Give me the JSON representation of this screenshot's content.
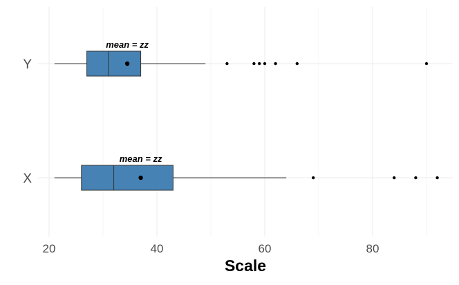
{
  "chart_data": {
    "type": "boxplot",
    "orientation": "horizontal",
    "xlabel": "Scale",
    "ylabel": "",
    "xlim": [
      18,
      95
    ],
    "x_ticks": [
      20,
      40,
      60,
      80
    ],
    "grid": true,
    "categories": [
      "Y",
      "X"
    ],
    "colors": {
      "box_fill": "#4682b4",
      "box_stroke": "#333333",
      "gridline": "#ebebeb",
      "point": "#000000"
    },
    "boxes": [
      {
        "category": "Y",
        "whisker_low": 21,
        "q1": 27,
        "median": 31,
        "q3": 37,
        "whisker_high": 49,
        "mean": 34.5,
        "mean_label": "mean = zz",
        "outliers": [
          53,
          58,
          59,
          60,
          62,
          66,
          90
        ]
      },
      {
        "category": "X",
        "whisker_low": 21,
        "q1": 26,
        "median": 32,
        "q3": 43,
        "whisker_high": 64,
        "mean": 37,
        "mean_label": "mean = zz",
        "outliers": [
          69,
          84,
          88,
          92
        ]
      }
    ]
  }
}
